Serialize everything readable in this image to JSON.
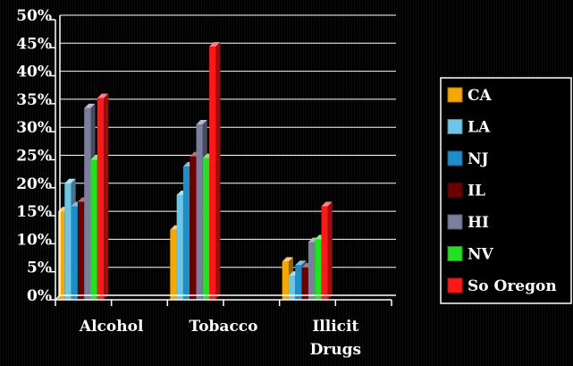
{
  "chart_data": {
    "type": "bar",
    "title": "",
    "xlabel": "",
    "ylabel": "",
    "ylim": [
      0,
      50
    ],
    "y_ticks": [
      "0%",
      "5%",
      "10%",
      "15%",
      "20%",
      "25%",
      "30%",
      "35%",
      "40%",
      "45%",
      "50%"
    ],
    "categories": [
      "Alcohol",
      "Tobacco",
      "Illicit Drugs"
    ],
    "category_label_lines": [
      [
        "Alcohol"
      ],
      [
        "Tobacco"
      ],
      [
        "Illicit",
        "Drugs"
      ]
    ],
    "grid": true,
    "legend_position": "right",
    "bar_style": "3d",
    "series": [
      {
        "name": "CA",
        "color": "#f5a800",
        "values": [
          15.8,
          12.5,
          6.8
        ]
      },
      {
        "name": "LA",
        "color": "#6ec6e6",
        "values": [
          20.8,
          18.7,
          4.3
        ]
      },
      {
        "name": "NJ",
        "color": "#1e8ec8",
        "values": [
          16.7,
          23.8,
          6.2
        ]
      },
      {
        "name": "IL",
        "color": "#6b0000",
        "values": [
          17.5,
          25.6,
          5.8
        ]
      },
      {
        "name": "HI",
        "color": "#7a7f9e",
        "values": [
          34.2,
          31.3,
          10.3
        ]
      },
      {
        "name": "NV",
        "color": "#22e022",
        "values": [
          25.0,
          25.3,
          10.8
        ]
      },
      {
        "name": "So Oregon",
        "color": "#ff1818",
        "values": [
          36.0,
          45.2,
          16.7
        ]
      }
    ]
  }
}
